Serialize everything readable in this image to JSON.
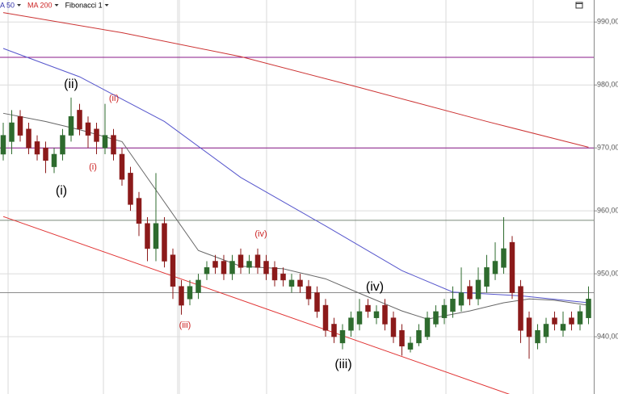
{
  "chart_data": {
    "type": "candlestick",
    "legend": [
      {
        "label": "A 50",
        "color": "#3333aa"
      },
      {
        "label": "MA 200",
        "color": "#cc2222"
      },
      {
        "label": "Fibonacci 1",
        "color": "#000000"
      }
    ],
    "up_color": "#2e6b2e",
    "down_color": "#8b1a1a",
    "ylim": [
      930.9,
      993.5
    ],
    "yticks": [
      {
        "value": 940,
        "label": "940,00"
      },
      {
        "value": 950,
        "label": "950,00"
      },
      {
        "value": 960,
        "label": "960,00"
      },
      {
        "value": 970,
        "label": "970,00"
      },
      {
        "value": 980,
        "label": "980,00"
      },
      {
        "value": 990,
        "label": "990,00"
      }
    ],
    "grid": true,
    "open": [
      969,
      971,
      975,
      973,
      971,
      970,
      967,
      969,
      972,
      976,
      974,
      973,
      970,
      972,
      969,
      966,
      962,
      958,
      954,
      958,
      953,
      948,
      946,
      947,
      950,
      952,
      952,
      950,
      953,
      951,
      953,
      952,
      951,
      950,
      948,
      949,
      948,
      947,
      945,
      942,
      939,
      941,
      942,
      945,
      943,
      945,
      943,
      941,
      938,
      939,
      940,
      942,
      943,
      944,
      945,
      948,
      946,
      948,
      950,
      951,
      955,
      948,
      943,
      939,
      940,
      943,
      941,
      943,
      942,
      943
    ],
    "high": [
      974,
      976,
      976,
      974,
      972,
      971,
      970,
      973,
      978,
      977,
      975,
      974,
      977,
      973,
      970,
      967,
      963,
      959,
      966,
      959,
      954,
      949,
      949,
      950,
      952,
      953,
      953,
      953,
      954,
      953,
      954,
      953,
      952,
      951,
      950,
      950,
      949,
      948,
      946,
      943,
      942,
      944,
      946,
      946,
      945,
      946,
      944,
      942,
      940,
      942,
      944,
      945,
      946,
      948,
      951,
      949,
      951,
      953,
      955,
      959,
      956,
      949,
      944,
      942,
      943,
      944,
      944,
      944,
      945,
      948
    ],
    "low": [
      968,
      969,
      971,
      969,
      968,
      966,
      966,
      968,
      971,
      972,
      970,
      969,
      969,
      968,
      964,
      960,
      956,
      952,
      952,
      951,
      946,
      943.5,
      945,
      946,
      949,
      950,
      949,
      949,
      950,
      950,
      950,
      949,
      948,
      948,
      947,
      947,
      945,
      943,
      940,
      939,
      938,
      940,
      941,
      943,
      942,
      941,
      939,
      937,
      937.5,
      938.5,
      939.5,
      941.5,
      942,
      943,
      944,
      945,
      945,
      947,
      949,
      950,
      946,
      939,
      936.5,
      938,
      939,
      941,
      940,
      941,
      941,
      942
    ],
    "close": [
      972,
      974,
      972,
      970,
      969,
      968,
      969,
      972,
      975,
      973,
      972,
      971,
      972,
      969,
      965,
      961,
      958,
      954,
      958,
      952,
      948,
      945,
      948,
      949,
      951,
      951,
      950,
      952,
      951,
      952,
      951,
      950,
      949,
      949,
      949,
      948,
      946,
      944,
      941,
      940,
      941,
      943,
      944,
      944,
      944,
      942,
      940,
      938.5,
      939,
      941,
      943,
      944,
      945,
      946,
      947,
      946,
      949,
      951,
      952,
      954,
      947,
      941,
      940,
      941,
      942,
      942,
      942,
      942,
      944,
      946
    ],
    "lines": [
      {
        "color": "#cc3333",
        "x": [
          0,
          14,
          28,
          42,
          57,
          69
        ],
        "values": [
          991.5,
          988.3,
          984.5,
          979.6,
          974.2,
          970.1
        ]
      },
      {
        "color": "#5555cc",
        "x": [
          0,
          9,
          19,
          28,
          38,
          47,
          53,
          61,
          69
        ],
        "values": [
          985.8,
          981.3,
          974.2,
          965.3,
          957.6,
          950.5,
          947.1,
          946.5,
          945.4
        ]
      },
      {
        "color": "#666666",
        "x": [
          0,
          5,
          9,
          14,
          19,
          23,
          28,
          33,
          38,
          42,
          47,
          50,
          55,
          59,
          62,
          65,
          69
        ],
        "values": [
          975.5,
          974.2,
          972.9,
          971,
          961.4,
          953.7,
          951.2,
          950.8,
          949.2,
          946.9,
          944.1,
          942.8,
          944.1,
          945.4,
          946,
          945.8,
          945
        ]
      },
      {
        "color": "#e03030",
        "x": [
          0,
          60
        ],
        "values": [
          959.1,
          930.7
        ]
      }
    ],
    "levels": [
      {
        "value": 984.4,
        "color": "#8a1a8a"
      },
      {
        "value": 970,
        "color": "#8a1a8a"
      },
      {
        "value": 958.5,
        "color": "#7a8a7a"
      },
      {
        "value": 947,
        "color": "#8a8a8a"
      }
    ],
    "annotations": [
      {
        "text": "(ii)",
        "color": "#000000"
      },
      {
        "text": "(ii)",
        "color": "#cc2222"
      },
      {
        "text": "(i)",
        "color": "#cc2222"
      },
      {
        "text": "(i)",
        "color": "#000000"
      },
      {
        "text": "(iii)",
        "color": "#cc2222"
      },
      {
        "text": "(iv)",
        "color": "#cc2222"
      },
      {
        "text": "(iv)",
        "color": "#000000"
      },
      {
        "text": "(iii)",
        "color": "#000000"
      }
    ]
  }
}
